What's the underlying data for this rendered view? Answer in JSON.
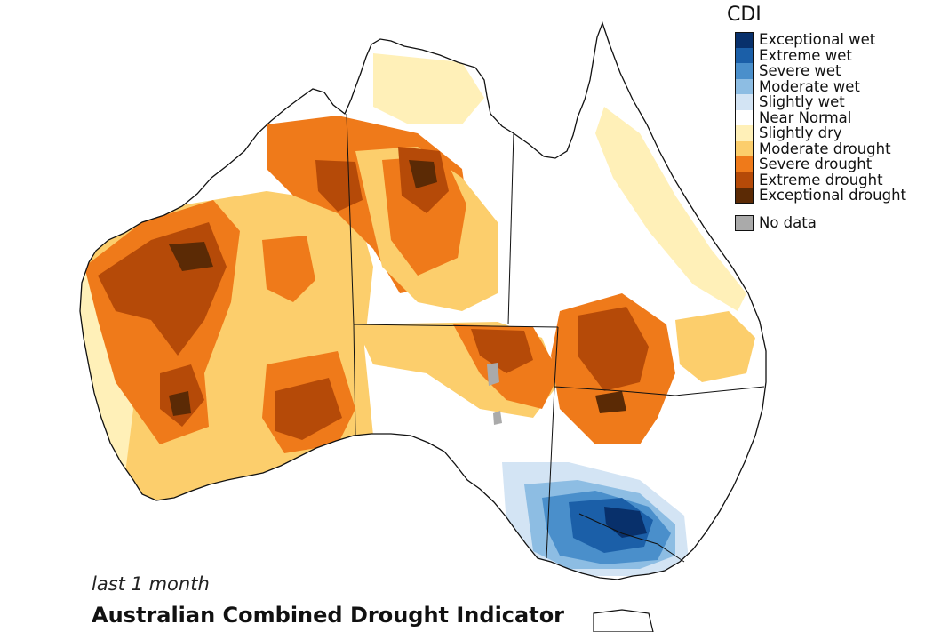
{
  "map": {
    "colors": {
      "exceptional_wet": "#08306b",
      "extreme_wet": "#1b5fa8",
      "severe_wet": "#4a8fcb",
      "moderate_wet": "#8dbde3",
      "slightly_wet": "#d3e4f4",
      "near_normal": "#ffffff",
      "slightly_dry": "#fff0b8",
      "moderate_drought": "#fcce6c",
      "severe_drought": "#ef7a1a",
      "extreme_drought": "#b54a08",
      "exceptional_drought": "#5b2a05",
      "no_data": "#aaaaaa"
    }
  },
  "legend": {
    "title": "CDI",
    "items": [
      {
        "label": "Exceptional wet",
        "color": "#08306b"
      },
      {
        "label": "Extreme wet",
        "color": "#1b5fa8"
      },
      {
        "label": "Severe wet",
        "color": "#4a8fcb"
      },
      {
        "label": "Moderate wet",
        "color": "#8dbde3"
      },
      {
        "label": "Slightly wet",
        "color": "#d3e4f4"
      },
      {
        "label": "Near Normal",
        "color": "#ffffff"
      },
      {
        "label": "Slightly dry",
        "color": "#fff0b8"
      },
      {
        "label": "Moderate drought",
        "color": "#fcce6c"
      },
      {
        "label": "Severe drought",
        "color": "#ef7a1a"
      },
      {
        "label": "Extreme drought",
        "color": "#b54a08"
      },
      {
        "label": "Exceptional drought",
        "color": "#5b2a05"
      }
    ],
    "no_data": {
      "label": "No data",
      "color": "#aaaaaa"
    }
  },
  "subtitle": "last 1 month",
  "title": "Australian Combined Drought Indicator"
}
